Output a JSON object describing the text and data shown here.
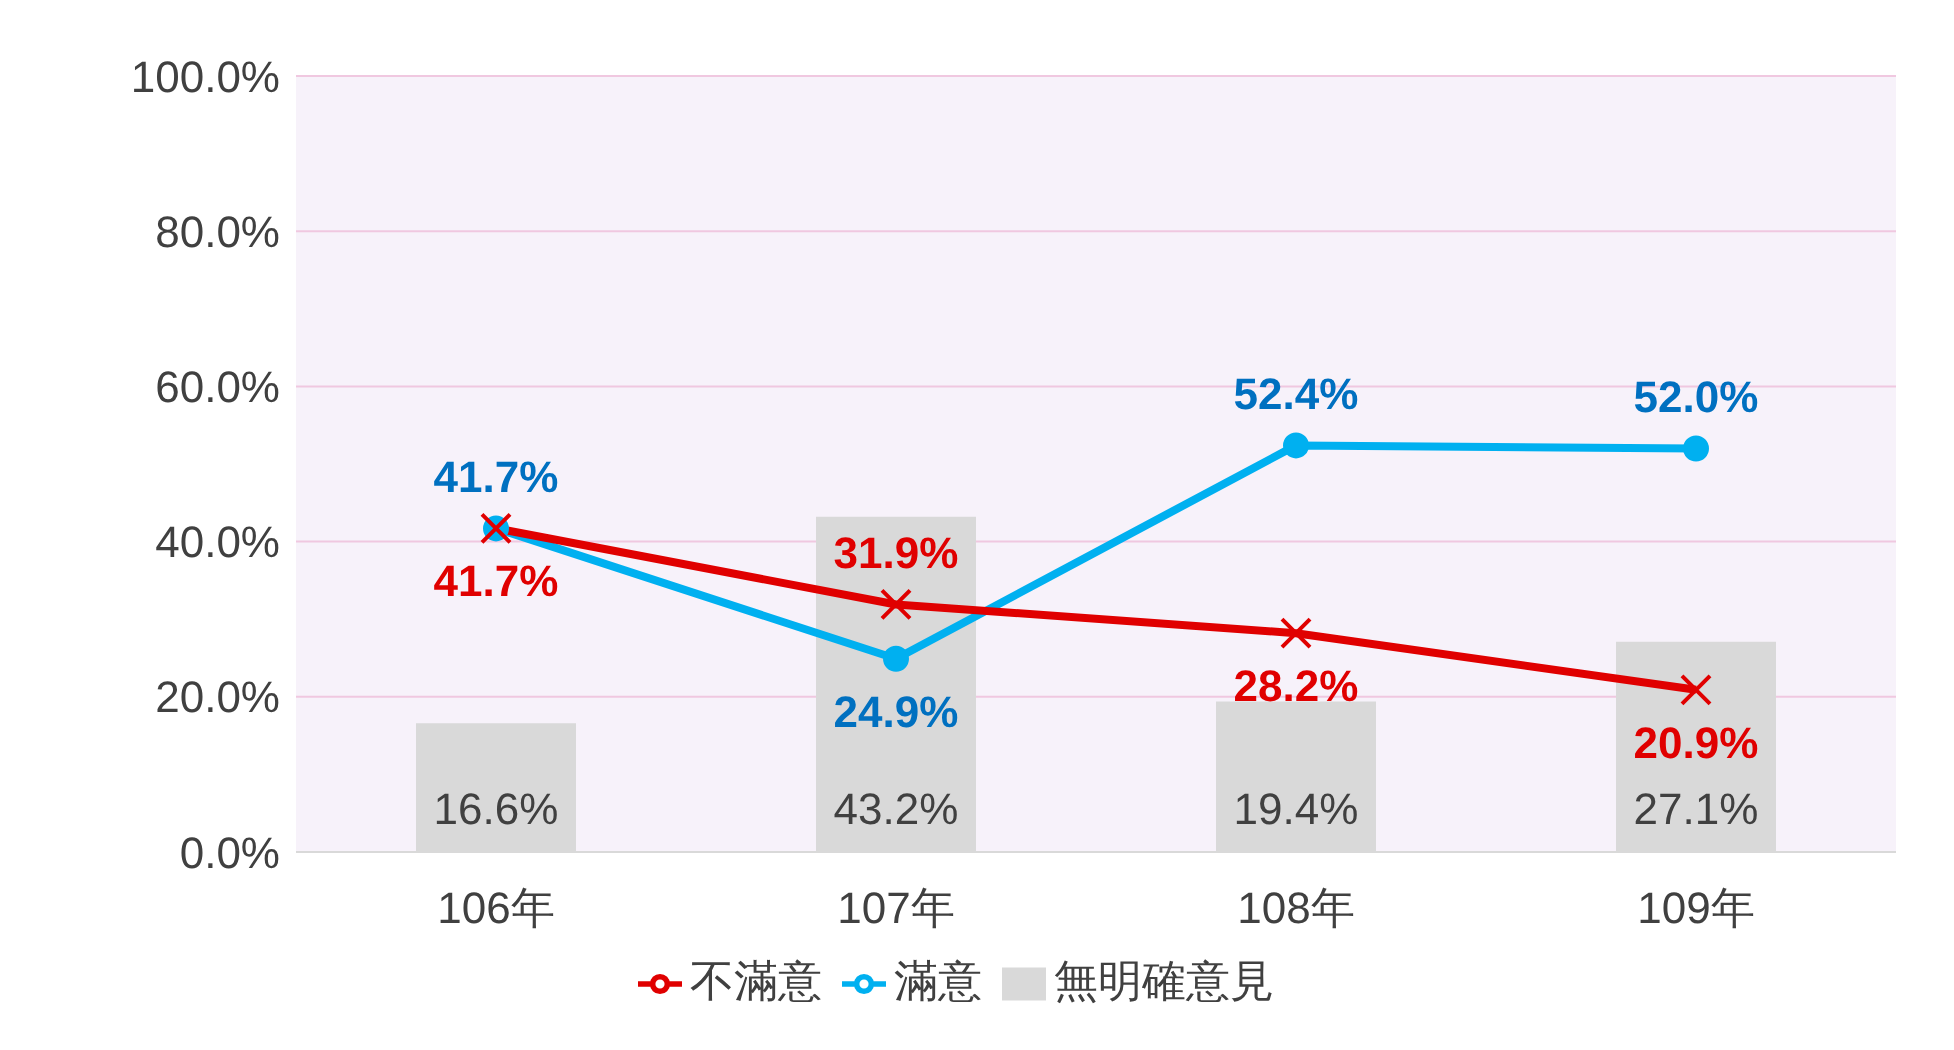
{
  "chart_data": {
    "type": "bar",
    "categories": [
      "106年",
      "107年",
      "108年",
      "109年"
    ],
    "series": [
      {
        "name": "無明確意見",
        "color": "#d9d9d9",
        "values": [
          16.6,
          43.2,
          19.4,
          27.1
        ],
        "value_labels": [
          "16.6%",
          "43.2%",
          "19.4%",
          "27.1%"
        ]
      },
      {
        "name": "滿意",
        "type": "line",
        "color": "#00b0f0",
        "marker": "circle",
        "values": [
          41.7,
          24.9,
          52.4,
          52.0
        ],
        "value_labels": [
          "41.7%",
          "24.9%",
          "52.4%",
          "52.0%"
        ]
      },
      {
        "name": "不滿意",
        "type": "line",
        "color": "#e00000",
        "marker": "cross",
        "values": [
          41.7,
          31.9,
          28.2,
          20.9
        ],
        "value_labels": [
          "41.7%",
          "31.9%",
          "28.2%",
          "20.9%"
        ]
      }
    ],
    "ylim": [
      0,
      100
    ],
    "yticks": [
      {
        "value": 0,
        "label": "0.0%"
      },
      {
        "value": 20,
        "label": "20.0%"
      },
      {
        "value": 40,
        "label": "40.0%"
      },
      {
        "value": 60,
        "label": "60.0%"
      },
      {
        "value": 80,
        "label": "80.0%"
      },
      {
        "value": 100,
        "label": "100.0%"
      }
    ],
    "grid": "y",
    "legend": "bottom"
  }
}
